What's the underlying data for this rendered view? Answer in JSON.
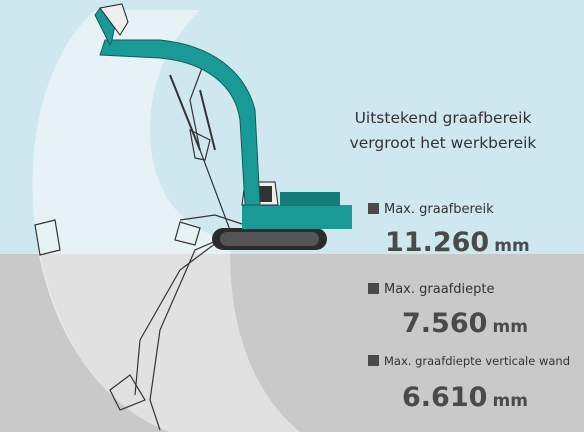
{
  "caption": {
    "lines": [
      "Uitstekend graafbereik",
      "vergroot het werkbereik"
    ]
  },
  "specs": [
    {
      "label": "Max. graafbereik",
      "value": "11.260",
      "unit": "mm"
    },
    {
      "label": "Max. graafdiepte",
      "value": "7.560",
      "unit": "mm"
    },
    {
      "label": "Max. graafdiepte verticale wand",
      "value": "6.610",
      "unit": "mm"
    }
  ]
}
